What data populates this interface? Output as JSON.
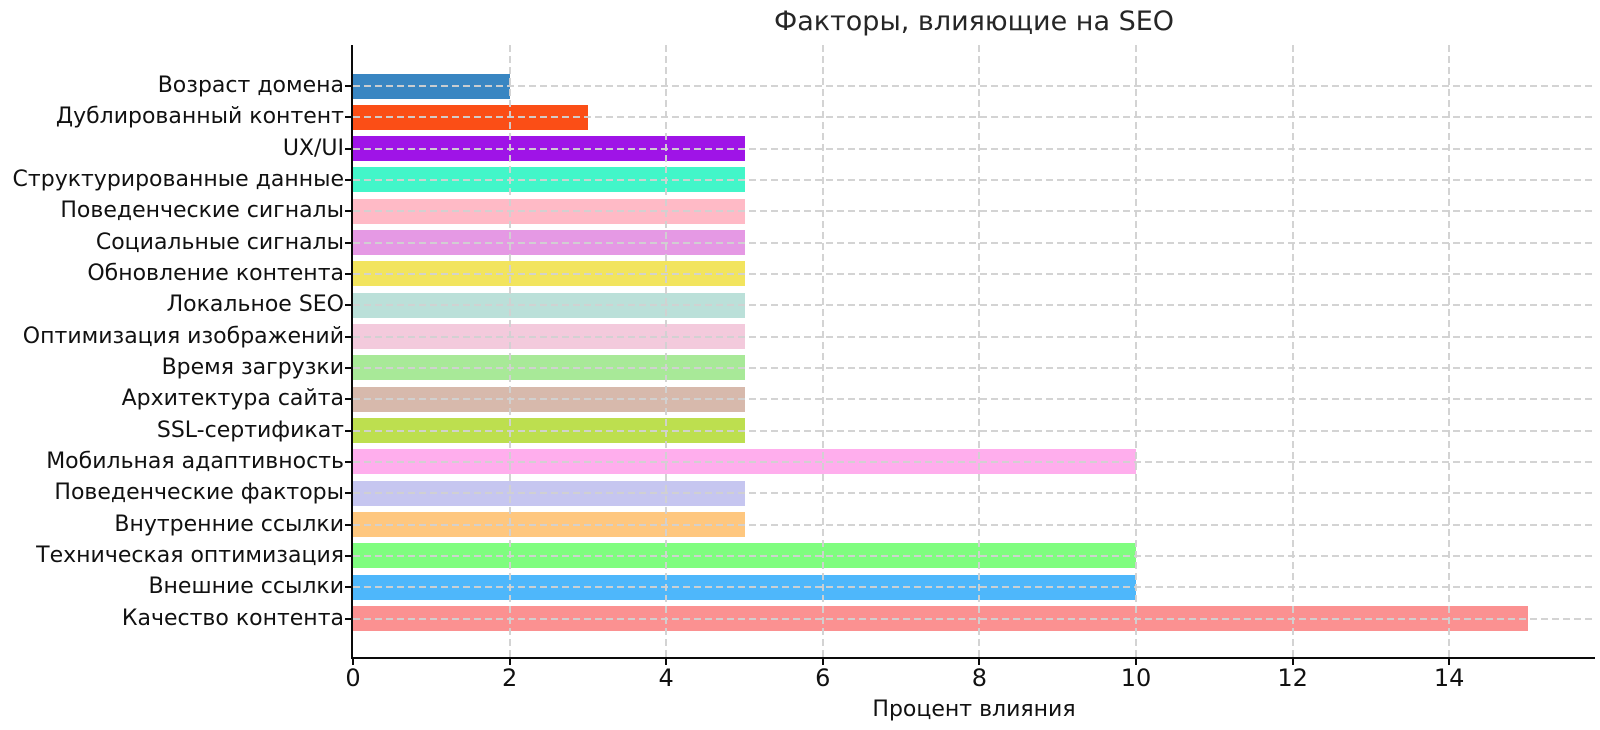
{
  "chart_data": {
    "type": "bar",
    "orientation": "horizontal",
    "title": "Факторы, влияющие на SEO",
    "xlabel": "Процент влияния",
    "ylabel": "",
    "xlim": [
      0,
      15.85
    ],
    "xticks": [
      0,
      2,
      4,
      6,
      8,
      10,
      12,
      14
    ],
    "grid": "dashed, both axes",
    "legend": "none",
    "categories": [
      "Возраст домена",
      "Дублированный контент",
      "UX/UI",
      "Структурированные данные",
      "Поведенческие сигналы",
      "Социальные сигналы",
      "Обновление контента",
      "Локальное SEO",
      "Оптимизация изображений",
      "Время загрузки",
      "Архитектура сайта",
      "SSL-сертификат",
      "Мобильная адаптивность",
      "Поведенческие факторы",
      "Внутренние ссылки",
      "Техническая оптимизация",
      "Внешние ссылки",
      "Качество контента"
    ],
    "values": [
      2,
      3,
      5,
      5,
      5,
      5,
      5,
      5,
      5,
      5,
      5,
      5,
      10,
      5,
      5,
      10,
      10,
      15
    ],
    "colors": [
      "#2e80bf",
      "#fb4409",
      "#9a07e6",
      "#38f5c6",
      "#ffb6c3",
      "#e494e3",
      "#f1e355",
      "#b7ded7",
      "#f2c7da",
      "#a3e892",
      "#d5b5a8",
      "#b9dd46",
      "#ffaaec",
      "#c3c3ef",
      "#fec478",
      "#78fd78",
      "#45b3fb",
      "#fb8b8b"
    ],
    "axis_color": "#0a0a0a",
    "grid_color": "#d1d1d1",
    "title_color": "#262626"
  }
}
